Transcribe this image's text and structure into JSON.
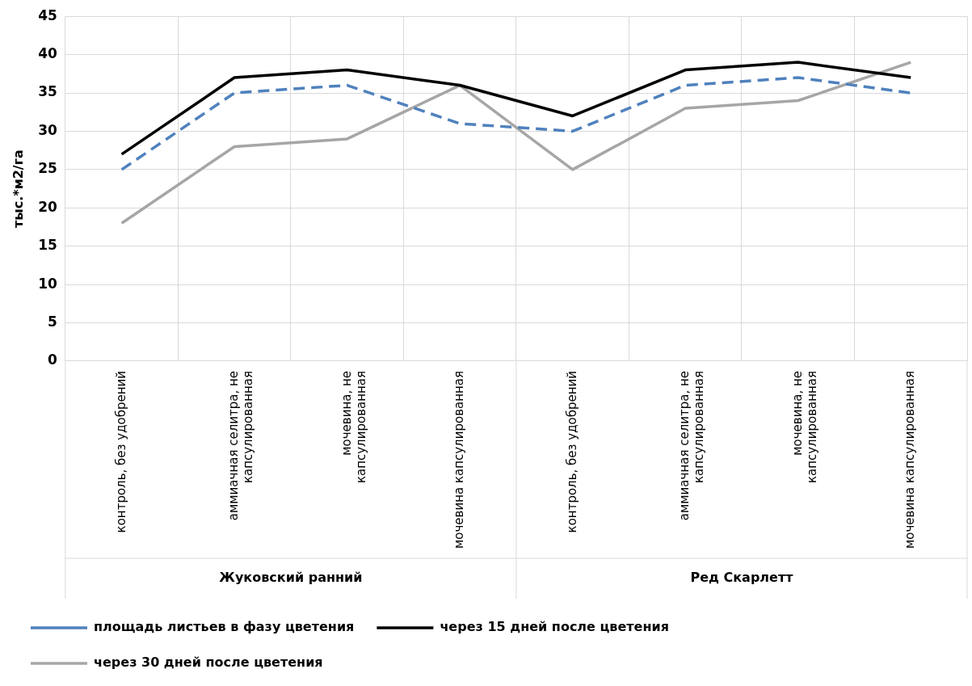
{
  "chart_data": {
    "type": "line",
    "ylabel": "тыс.*м2/га",
    "categories": [
      "контроль, без удобрений",
      "аммиачная селитра, не капсулированная",
      "мочевина, не капсулированная",
      "мочевина капсулированная",
      "контроль, без удобрений",
      "аммиачная селитра, не капсулированная",
      "мочевина, не капсулированная",
      "мочевина капсулированная"
    ],
    "annotations": [
      "Жуковский ранний",
      "Ред Скарлетт"
    ],
    "series": [
      {
        "name": "площадь листьев в фазу цветения",
        "color": "#4f81bd",
        "line_style": "dashed",
        "values": [
          25,
          35,
          36,
          31,
          30,
          36,
          37,
          35
        ]
      },
      {
        "name": "через 15 дней после цветения",
        "color": "#000000",
        "line_style": "solid",
        "values": [
          27,
          37,
          38,
          36,
          32,
          38,
          39,
          37
        ]
      },
      {
        "name": "через 30 дней после цветения",
        "color": "#a6a6a6",
        "line_style": "solid",
        "values": [
          18,
          28,
          29,
          36,
          25,
          33,
          34,
          39
        ]
      }
    ],
    "ylim": [
      0,
      45
    ],
    "yticks": [
      0,
      5,
      10,
      15,
      20,
      25,
      30,
      35,
      40,
      45
    ],
    "grid": true,
    "legend": "bottom",
    "marker": "none"
  }
}
